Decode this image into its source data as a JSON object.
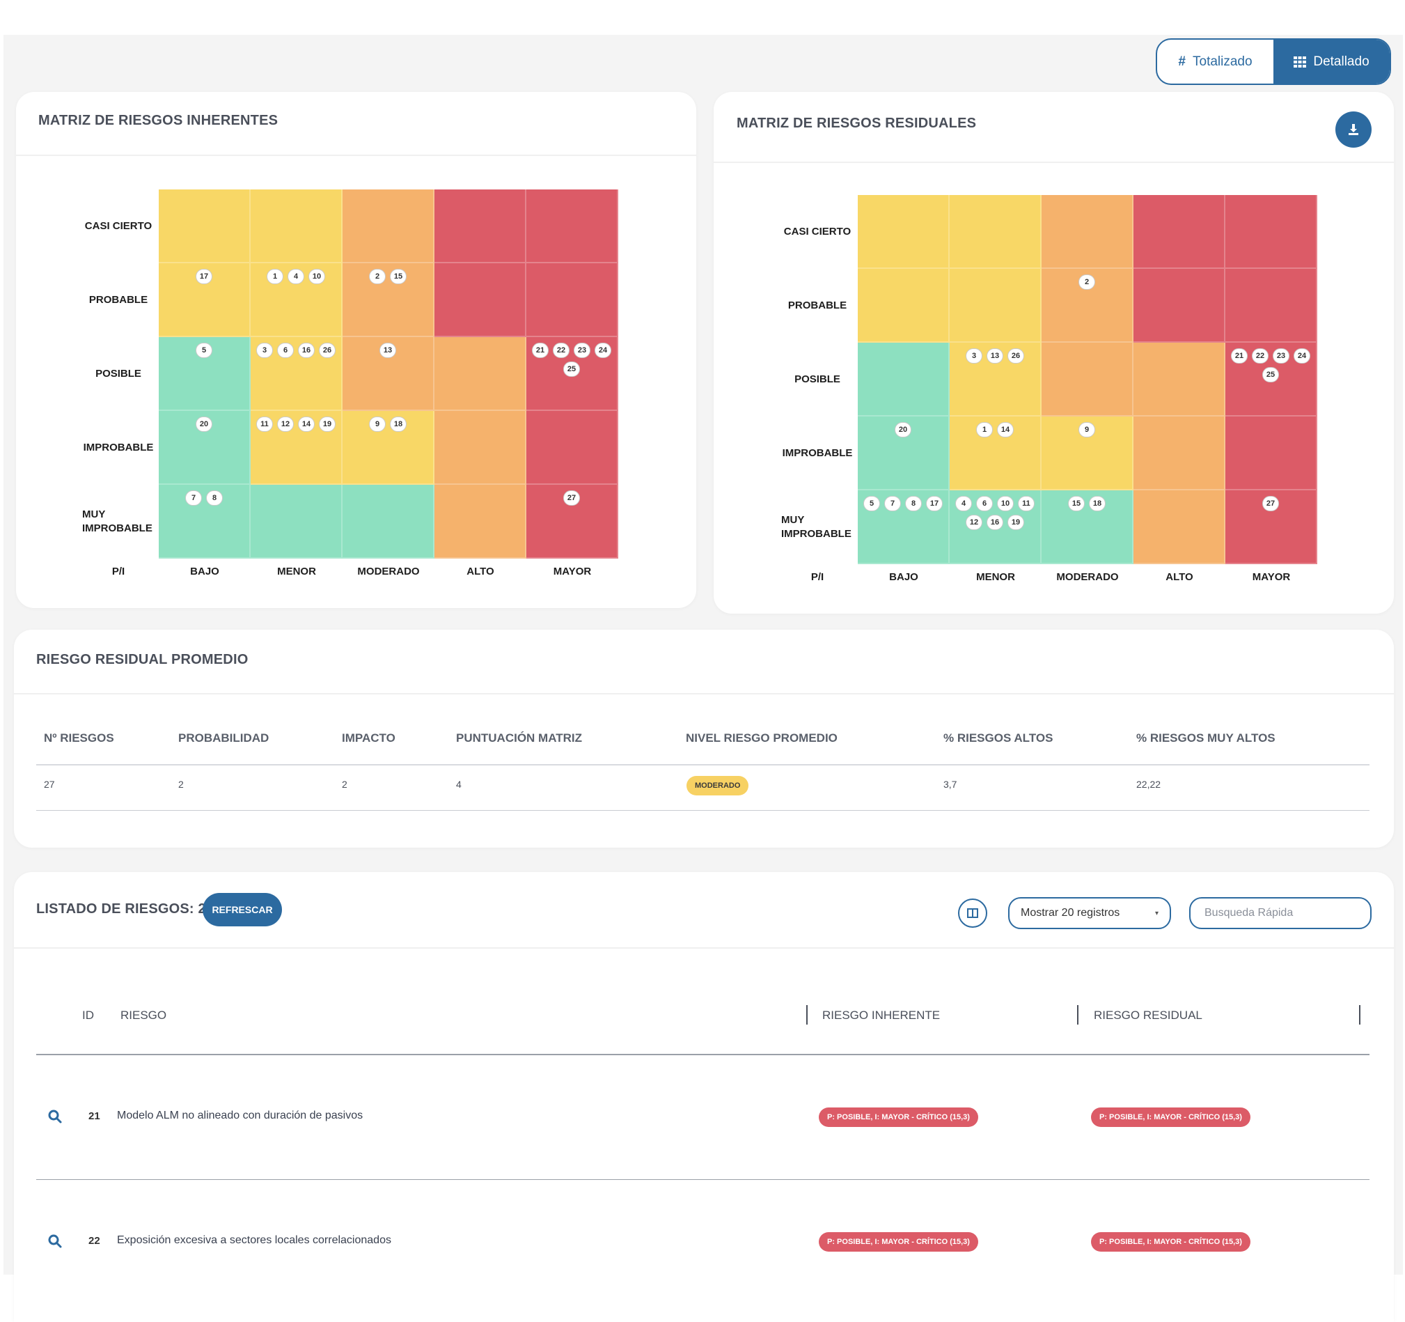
{
  "view_toggle": {
    "totalizado": {
      "label": "Totalizado",
      "icon": "hash-icon"
    },
    "detallado": {
      "label": "Detallado",
      "icon": "grid-icon"
    }
  },
  "colors": {
    "primary": "#2c6aa0",
    "green": "#8de0c0",
    "yellow": "#f8d766",
    "orange": "#f5b26c",
    "red": "#dc5b67",
    "moderado": "#f7d163"
  },
  "inherent": {
    "title": "MATRIZ DE RIESGOS INHERENTES",
    "row_labels": [
      "CASI CIERTO",
      "PROBABLE",
      "POSIBLE",
      "IMPROBABLE",
      "MUY IMPROBABLE"
    ],
    "col_labels": [
      "BAJO",
      "MENOR",
      "MODERADO",
      "ALTO",
      "MAYOR"
    ],
    "corner": "P/I",
    "cells": [
      [
        {
          "c": "y",
          "ids": []
        },
        {
          "c": "y",
          "ids": []
        },
        {
          "c": "o",
          "ids": []
        },
        {
          "c": "r",
          "ids": []
        },
        {
          "c": "r",
          "ids": []
        }
      ],
      [
        {
          "c": "y",
          "ids": [
            "17"
          ]
        },
        {
          "c": "y",
          "ids": [
            "1",
            "4",
            "10"
          ]
        },
        {
          "c": "o",
          "ids": [
            "2",
            "15"
          ]
        },
        {
          "c": "r",
          "ids": []
        },
        {
          "c": "r",
          "ids": []
        }
      ],
      [
        {
          "c": "g",
          "ids": [
            "5"
          ]
        },
        {
          "c": "y",
          "ids": [
            "3",
            "6",
            "16",
            "26"
          ]
        },
        {
          "c": "o",
          "ids": [
            "13"
          ]
        },
        {
          "c": "o",
          "ids": []
        },
        {
          "c": "r",
          "ids": [
            "21",
            "22",
            "23",
            "24",
            "25"
          ]
        }
      ],
      [
        {
          "c": "g",
          "ids": [
            "20"
          ]
        },
        {
          "c": "y",
          "ids": [
            "11",
            "12",
            "14",
            "19"
          ]
        },
        {
          "c": "y",
          "ids": [
            "9",
            "18"
          ]
        },
        {
          "c": "o",
          "ids": []
        },
        {
          "c": "r",
          "ids": []
        }
      ],
      [
        {
          "c": "g",
          "ids": [
            "7",
            "8"
          ]
        },
        {
          "c": "g",
          "ids": []
        },
        {
          "c": "g",
          "ids": []
        },
        {
          "c": "o",
          "ids": []
        },
        {
          "c": "r",
          "ids": [
            "27"
          ]
        }
      ]
    ]
  },
  "residual": {
    "title": "MATRIZ DE RIESGOS RESIDUALES",
    "download_icon": "download-icon",
    "row_labels": [
      "CASI CIERTO",
      "PROBABLE",
      "POSIBLE",
      "IMPROBABLE",
      "MUY IMPROBABLE"
    ],
    "col_labels": [
      "BAJO",
      "MENOR",
      "MODERADO",
      "ALTO",
      "MAYOR"
    ],
    "corner": "P/I",
    "cells": [
      [
        {
          "c": "y",
          "ids": []
        },
        {
          "c": "y",
          "ids": []
        },
        {
          "c": "o",
          "ids": []
        },
        {
          "c": "r",
          "ids": []
        },
        {
          "c": "r",
          "ids": []
        }
      ],
      [
        {
          "c": "y",
          "ids": []
        },
        {
          "c": "y",
          "ids": []
        },
        {
          "c": "o",
          "ids": [
            "2"
          ]
        },
        {
          "c": "r",
          "ids": []
        },
        {
          "c": "r",
          "ids": []
        }
      ],
      [
        {
          "c": "g",
          "ids": []
        },
        {
          "c": "y",
          "ids": [
            "3",
            "13",
            "26"
          ]
        },
        {
          "c": "o",
          "ids": []
        },
        {
          "c": "o",
          "ids": []
        },
        {
          "c": "r",
          "ids": [
            "21",
            "22",
            "23",
            "24",
            "25"
          ]
        }
      ],
      [
        {
          "c": "g",
          "ids": [
            "20"
          ]
        },
        {
          "c": "y",
          "ids": [
            "1",
            "14"
          ]
        },
        {
          "c": "y",
          "ids": [
            "9"
          ]
        },
        {
          "c": "o",
          "ids": []
        },
        {
          "c": "r",
          "ids": []
        }
      ],
      [
        {
          "c": "g",
          "ids": [
            "5",
            "7",
            "8",
            "17"
          ]
        },
        {
          "c": "g",
          "ids": [
            "4",
            "6",
            "10",
            "11",
            "12",
            "16",
            "19"
          ]
        },
        {
          "c": "g",
          "ids": [
            "15",
            "18"
          ]
        },
        {
          "c": "o",
          "ids": []
        },
        {
          "c": "r",
          "ids": [
            "27"
          ]
        }
      ]
    ]
  },
  "summary": {
    "title": "RIESGO RESIDUAL PROMEDIO",
    "headers": [
      "Nº RIESGOS",
      "PROBABILIDAD",
      "IMPACTO",
      "PUNTUACIÓN MATRIZ",
      "NIVEL RIESGO PROMEDIO",
      "% RIESGOS ALTOS",
      "% RIESGOS MUY ALTOS"
    ],
    "values": {
      "n_riesgos": "27",
      "probabilidad": "2",
      "impacto": "2",
      "puntuacion": "4",
      "nivel": "MODERADO",
      "pct_altos": "3,7",
      "pct_muy_altos": "22,22"
    }
  },
  "list": {
    "title": "LISTADO DE RIESGOS: 27",
    "refresh_label": "REFRESCAR",
    "columns_icon": "columns-icon",
    "page_size_label": "Mostrar 20 registros",
    "search_placeholder": "Busqueda Rápida",
    "headers": {
      "id": "ID",
      "riesgo": "RIESGO",
      "inherente": "RIESGO INHERENTE",
      "residual": "RIESGO RESIDUAL"
    },
    "rows": [
      {
        "id": "21",
        "riesgo": "Modelo ALM no alineado con duración de pasivos",
        "inherente": "P: POSIBLE, I: MAYOR - CRÍTICO (15,3)",
        "residual": "P: POSIBLE, I: MAYOR - CRÍTICO (15,3)"
      },
      {
        "id": "22",
        "riesgo": "Exposición excesiva a sectores locales correlacionados",
        "inherente": "P: POSIBLE, I: MAYOR - CRÍTICO (15,3)",
        "residual": "P: POSIBLE, I: MAYOR - CRÍTICO (15,3)"
      }
    ]
  }
}
